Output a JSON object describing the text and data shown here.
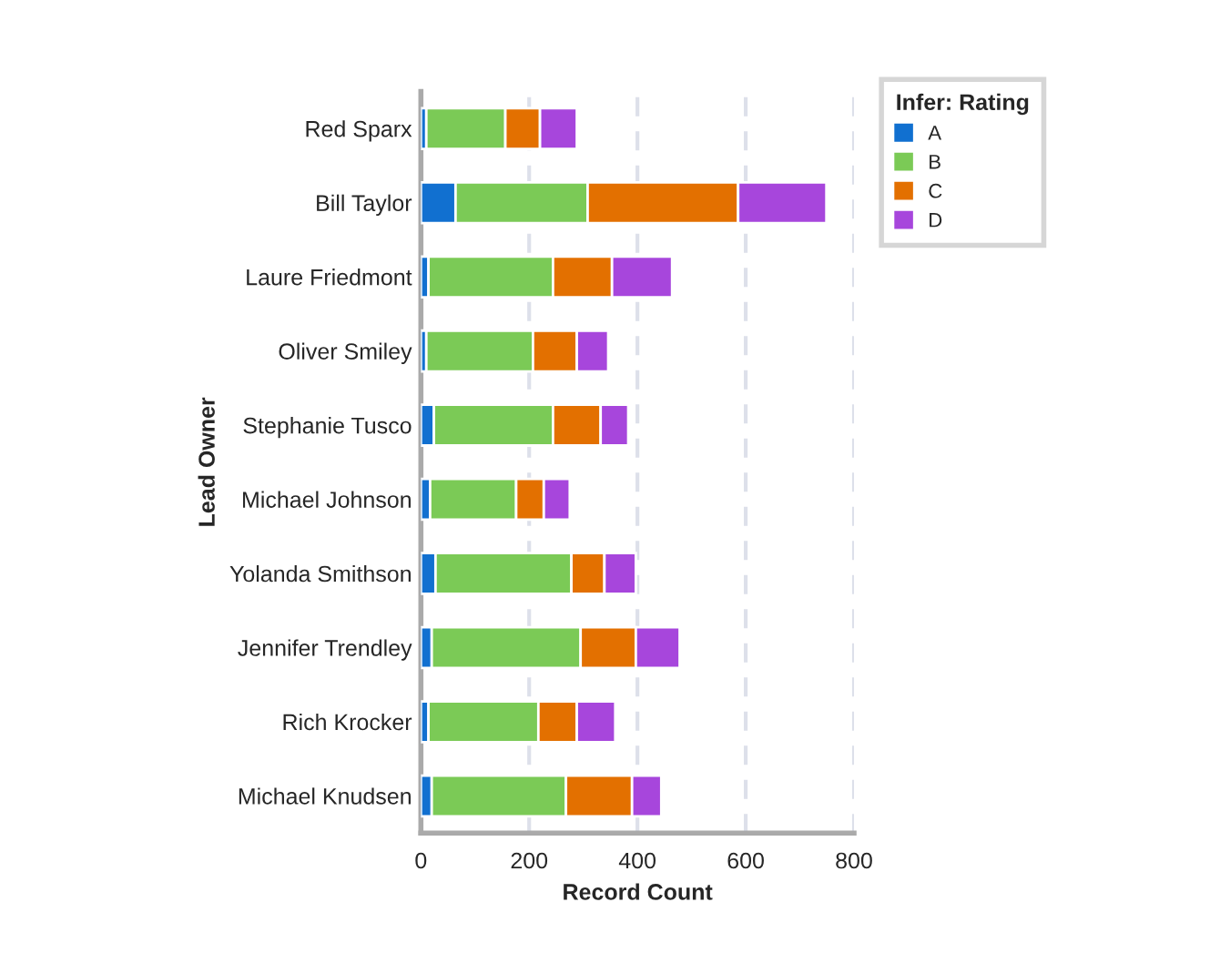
{
  "chart_data": {
    "type": "bar",
    "orientation": "horizontal",
    "stacked": true,
    "xlabel": "Record Count",
    "ylabel": "Lead Owner",
    "legend_title": "Infer: Rating",
    "legend": "top right",
    "grid": "x",
    "categories": [
      "Red Sparx",
      "Bill Taylor",
      "Laure Friedmont",
      "Oliver Smiley",
      "Stephanie Tusco",
      "Michael Johnson",
      "Yolanda Smithson",
      "Jennifer Trendley",
      "Rich Krocker",
      "Michael Knudsen"
    ],
    "series": [
      {
        "name": "A",
        "color": "#1170d0",
        "values": [
          10,
          64,
          14,
          10,
          24,
          17,
          27,
          20,
          14,
          20
        ]
      },
      {
        "name": "B",
        "color": "#7bca56",
        "values": [
          146,
          244,
          230,
          197,
          220,
          159,
          251,
          275,
          203,
          248
        ]
      },
      {
        "name": "C",
        "color": "#e37000",
        "values": [
          64,
          278,
          109,
          81,
          88,
          51,
          61,
          102,
          71,
          122
        ]
      },
      {
        "name": "D",
        "color": "#a746dc",
        "values": [
          68,
          163,
          111,
          58,
          51,
          48,
          58,
          81,
          71,
          54
        ]
      }
    ],
    "xlim": [
      0,
      800
    ],
    "xticks": [
      0,
      200,
      400,
      600,
      800
    ]
  }
}
